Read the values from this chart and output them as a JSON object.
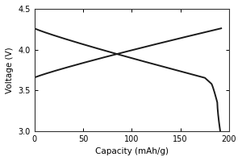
{
  "title": "",
  "xlabel": "Capacity (mAh/g)",
  "ylabel": "Voltage (V)",
  "xlim": [
    0,
    200
  ],
  "ylim": [
    3.0,
    4.5
  ],
  "xticks": [
    0,
    50,
    100,
    150,
    200
  ],
  "yticks": [
    3.0,
    3.5,
    4.0,
    4.5
  ],
  "background_color": "#ffffff",
  "line_color": "#1a1a1a",
  "line_width": 1.4,
  "figsize": [
    3.0,
    2.0
  ],
  "dpi": 100
}
